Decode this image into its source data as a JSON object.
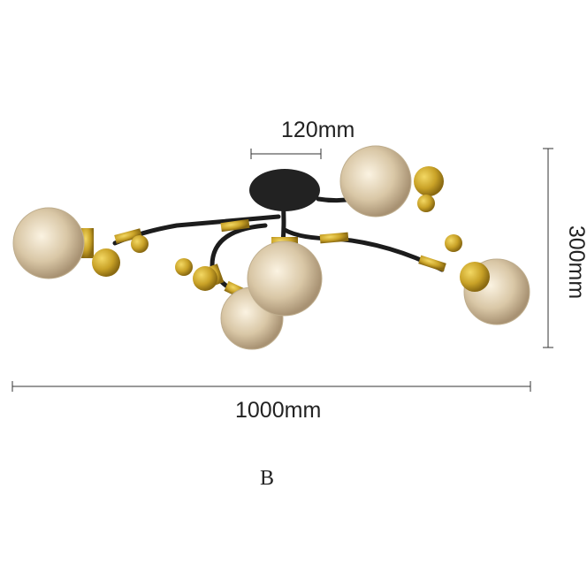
{
  "dimensions": {
    "canopy_width": "120mm",
    "height": "300mm",
    "width": "1000mm"
  },
  "variant_label": "B",
  "colors": {
    "arm": "#1c1c1c",
    "gold": "#c9a227",
    "glass": "#d8c9ae",
    "dimension_line": "#333333"
  }
}
